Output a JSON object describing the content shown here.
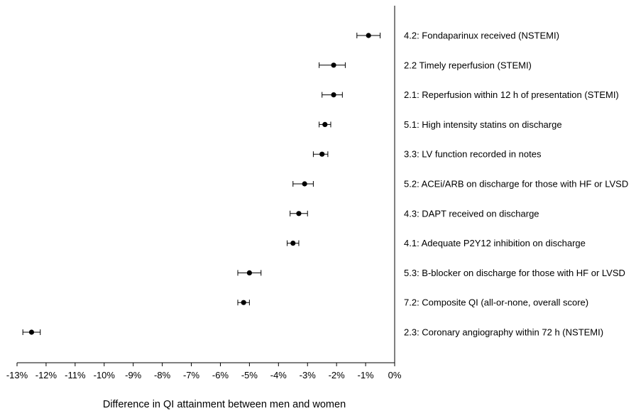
{
  "chart_data": {
    "type": "scatter",
    "subtype": "forest-plot",
    "title": "",
    "xlabel": "Difference in QI attainment between men and women",
    "ylabel": "",
    "xlim": [
      -13,
      0
    ],
    "x_ticks": [
      -13,
      -12,
      -11,
      -10,
      -9,
      -8,
      -7,
      -6,
      -5,
      -4,
      -3,
      -2,
      -1,
      0
    ],
    "x_tick_labels": [
      "-13%",
      "-12%",
      "-11%",
      "-10%",
      "-9%",
      "-8%",
      "-7%",
      "-6%",
      "-5%",
      "-4%",
      "-3%",
      "-2%",
      "-1%",
      "0%"
    ],
    "grid": false,
    "legend": "none",
    "marker_color": "#000000",
    "points": [
      {
        "label": "4.2: Fondaparinux received (NSTEMI)",
        "value": -0.9,
        "ci_low": -1.3,
        "ci_high": -0.5
      },
      {
        "label": "2.2 Timely reperfusion (STEMI)",
        "value": -2.1,
        "ci_low": -2.6,
        "ci_high": -1.7
      },
      {
        "label": "2.1: Reperfusion within 12 h of presentation (STEMI)",
        "value": -2.1,
        "ci_low": -2.5,
        "ci_high": -1.8
      },
      {
        "label": "5.1: High intensity statins on discharge",
        "value": -2.4,
        "ci_low": -2.6,
        "ci_high": -2.2
      },
      {
        "label": "3.3: LV function recorded in notes",
        "value": -2.5,
        "ci_low": -2.8,
        "ci_high": -2.3
      },
      {
        "label": "5.2: ACEi/ARB on discharge for those with HF or LVSD",
        "value": -3.1,
        "ci_low": -3.5,
        "ci_high": -2.8
      },
      {
        "label": "4.3: DAPT received on discharge",
        "value": -3.3,
        "ci_low": -3.6,
        "ci_high": -3.0
      },
      {
        "label": "4.1: Adequate P2Y12 inhibition on discharge",
        "value": -3.5,
        "ci_low": -3.7,
        "ci_high": -3.3
      },
      {
        "label": "5.3: B-blocker on discharge for those with HF or LVSD",
        "value": -5.0,
        "ci_low": -5.4,
        "ci_high": -4.6
      },
      {
        "label": "7.2: Composite QI (all-or-none, overall score)",
        "value": -5.2,
        "ci_low": -5.4,
        "ci_high": -5.0
      },
      {
        "label": "2.3: Coronary angiography within 72 h (NSTEMI)",
        "value": -12.5,
        "ci_low": -12.8,
        "ci_high": -12.2
      }
    ]
  }
}
